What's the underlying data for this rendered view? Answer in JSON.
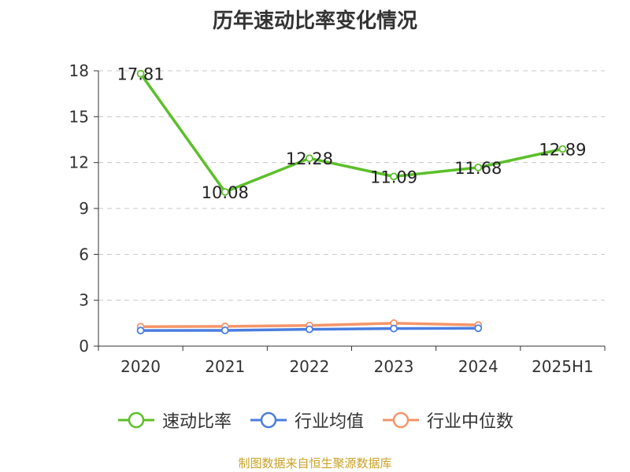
{
  "chart_data": {
    "type": "line",
    "title": "历年速动比率变化情况",
    "categories": [
      "2020",
      "2021",
      "2022",
      "2023",
      "2024",
      "2025H1"
    ],
    "series": [
      {
        "name": "速动比率",
        "color": "#5cbf2a",
        "values": [
          17.81,
          10.08,
          12.28,
          11.09,
          11.68,
          12.89
        ],
        "show_labels": true
      },
      {
        "name": "行业均值",
        "color": "#4a7de0",
        "values": [
          1.02,
          1.03,
          1.1,
          1.15,
          1.17,
          null
        ],
        "show_labels": false
      },
      {
        "name": "行业中位数",
        "color": "#f5956a",
        "values": [
          1.27,
          1.29,
          1.35,
          1.5,
          1.38,
          null
        ],
        "show_labels": false
      }
    ],
    "ylim": [
      0,
      18
    ],
    "yticks": [
      0,
      3,
      6,
      9,
      12,
      15,
      18
    ],
    "grid": true,
    "legend_position": "bottom"
  },
  "source_text": "制图数据来自恒生聚源数据库"
}
